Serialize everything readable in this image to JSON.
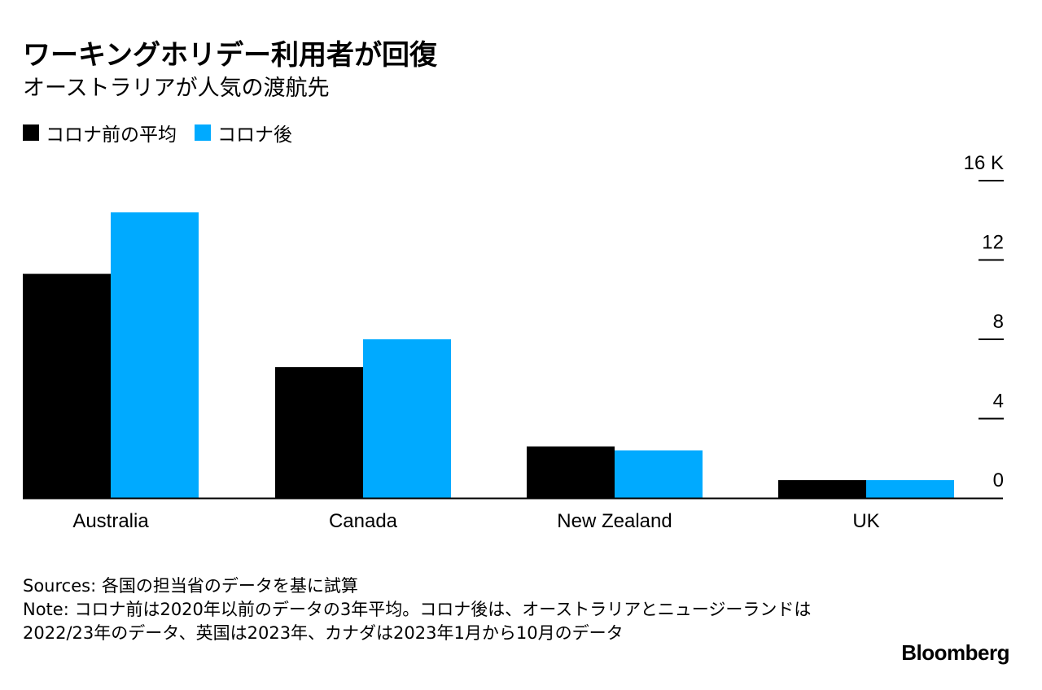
{
  "header": {
    "title": "ワーキングホリデー利用者が回復",
    "subtitle": "オーストラリアが人気の渡航先"
  },
  "colors": {
    "pre_covid": "#000000",
    "post_covid": "#00aaff",
    "axis": "#000000"
  },
  "legend": {
    "items": [
      {
        "label": "コロナ前の平均",
        "color": "#000000"
      },
      {
        "label": "コロナ後",
        "color": "#00aaff"
      }
    ]
  },
  "chart_data": {
    "type": "bar",
    "categories": [
      "Australia",
      "Canada",
      "New Zealand",
      "UK"
    ],
    "series": [
      {
        "name": "コロナ前の平均",
        "values": [
          11.3,
          6.6,
          2.6,
          0.9
        ]
      },
      {
        "name": "コロナ後",
        "values": [
          14.4,
          8.0,
          2.4,
          0.9
        ]
      }
    ],
    "yticks": [
      "16 K",
      "12",
      "8",
      "4",
      "0"
    ],
    "ytick_values": [
      16,
      12,
      8,
      4,
      0
    ],
    "ylim": [
      0,
      16
    ],
    "grid": false,
    "legend_position": "top-left"
  },
  "footer": {
    "sources": "Sources: 各国の担当省のデータを基に試算",
    "note": "Note: コロナ前は2020年以前のデータの3年平均。コロナ後は、オーストラリアとニュージーランドは2022/23年のデータ、英国は2023年、カナダは2023年1月から10月のデータ",
    "brand": "Bloomberg"
  }
}
